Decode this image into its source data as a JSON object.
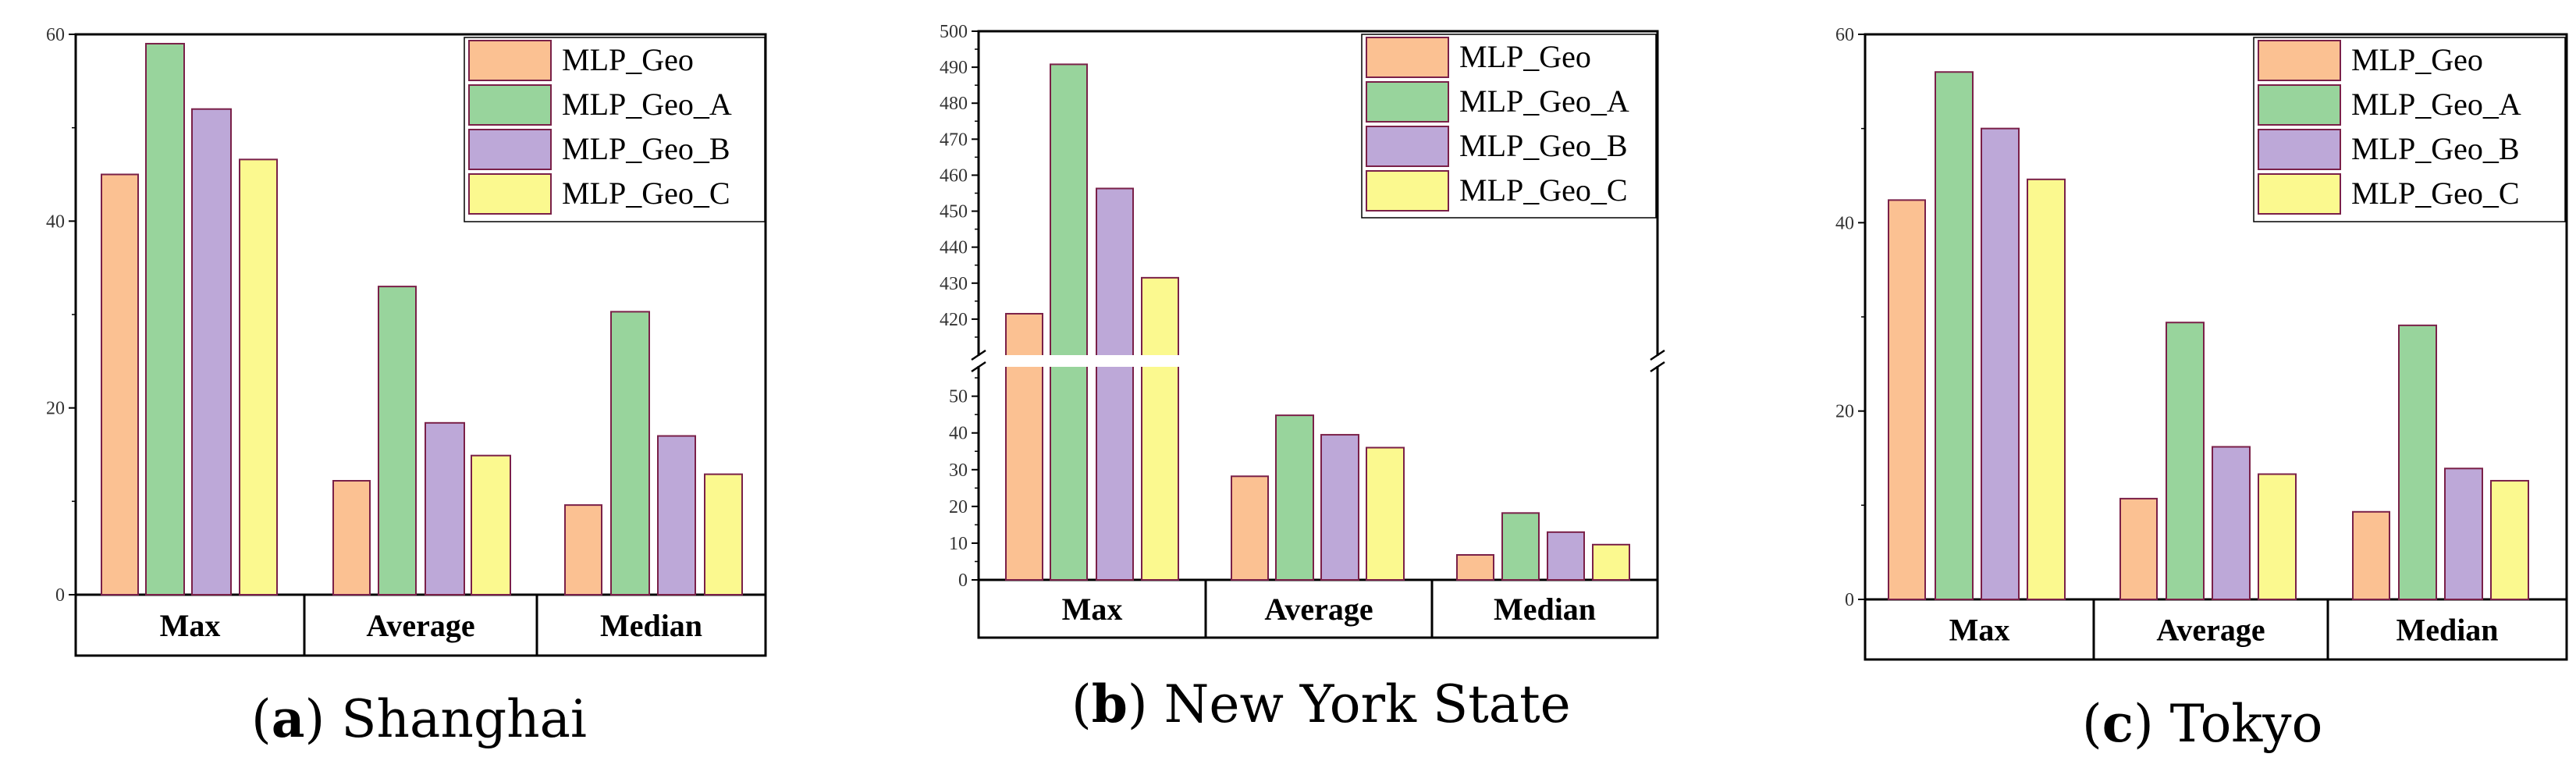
{
  "colors": {
    "MLP_Geo": "#fbc192",
    "MLP_Geo_A": "#98d49c",
    "MLP_Geo_B": "#bda8d8",
    "MLP_Geo_C": "#fbf98f"
  },
  "chart_data": [
    {
      "type": "bar",
      "panel": "a",
      "caption": "Shanghai",
      "categories": [
        "Max",
        "Average",
        "Median"
      ],
      "series": [
        {
          "name": "MLP_Geo",
          "values": [
            45.0,
            12.2,
            9.6
          ]
        },
        {
          "name": "MLP_Geo_A",
          "values": [
            59.0,
            33.0,
            30.3
          ]
        },
        {
          "name": "MLP_Geo_B",
          "values": [
            52.0,
            18.4,
            17.0
          ]
        },
        {
          "name": "MLP_Geo_C",
          "values": [
            46.6,
            14.9,
            12.9
          ]
        }
      ],
      "ylim": [
        0,
        60
      ],
      "yticks": [
        0,
        20,
        40,
        60
      ],
      "legend": "top-right"
    },
    {
      "type": "bar",
      "panel": "b",
      "caption": "New York State",
      "categories": [
        "Max",
        "Average",
        "Median"
      ],
      "series": [
        {
          "name": "MLP_Geo",
          "values": [
            421.5,
            28.2,
            6.8
          ]
        },
        {
          "name": "MLP_Geo_A",
          "values": [
            490.8,
            44.8,
            18.2
          ]
        },
        {
          "name": "MLP_Geo_B",
          "values": [
            456.3,
            39.5,
            13.0
          ]
        },
        {
          "name": "MLP_Geo_C",
          "values": [
            431.5,
            36.0,
            9.6
          ]
        }
      ],
      "y_axis_break": {
        "lower_range": [
          0,
          58
        ],
        "upper_range": [
          410,
          500
        ]
      },
      "yticks_lower": [
        0,
        10,
        20,
        30,
        40,
        50
      ],
      "yticks_upper": [
        420,
        430,
        440,
        450,
        460,
        470,
        480,
        490,
        500
      ],
      "legend": "top-right"
    },
    {
      "type": "bar",
      "panel": "c",
      "caption": "Tokyo",
      "categories": [
        "Max",
        "Average",
        "Median"
      ],
      "series": [
        {
          "name": "MLP_Geo",
          "values": [
            42.4,
            10.7,
            9.3
          ]
        },
        {
          "name": "MLP_Geo_A",
          "values": [
            56.0,
            29.4,
            29.1
          ]
        },
        {
          "name": "MLP_Geo_B",
          "values": [
            50.0,
            16.2,
            13.9
          ]
        },
        {
          "name": "MLP_Geo_C",
          "values": [
            44.6,
            13.3,
            12.6
          ]
        }
      ],
      "ylim": [
        0,
        60
      ],
      "yticks": [
        0,
        20,
        40,
        60
      ],
      "legend": "top-right"
    }
  ]
}
